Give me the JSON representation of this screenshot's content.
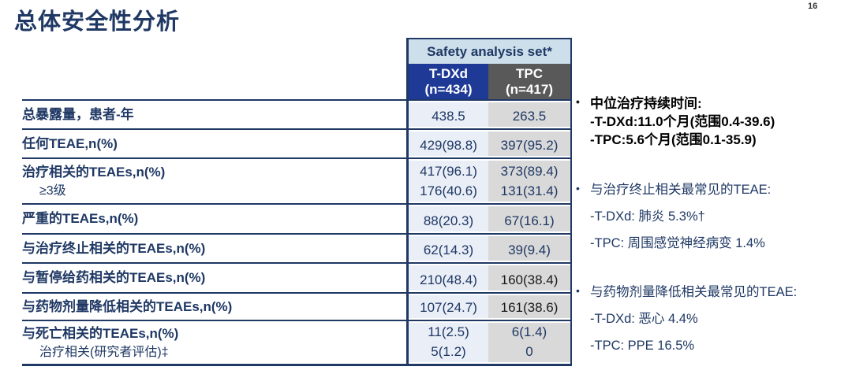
{
  "page": {
    "number": "16"
  },
  "title": "总体安全性分析",
  "table": {
    "group_header": "Safety analysis set*",
    "columns": [
      {
        "name": "T-DXd",
        "n": "(n=434)"
      },
      {
        "name": "TPC",
        "n": "(n=417)"
      }
    ],
    "rows": [
      {
        "label": "总暴露量，患者-年",
        "tdxd": "438.5",
        "tpc": "263.5"
      },
      {
        "label": "任何TEAE,n(%)",
        "tdxd": "429(98.8)",
        "tpc": "397(95.2)"
      },
      {
        "label": "治疗相关的TEAEs,n(%)",
        "sublabel": "≥3级",
        "tdxd": "417(96.1)",
        "tdxd2": "176(40.6)",
        "tpc": "373(89.4)",
        "tpc2": "131(31.4)"
      },
      {
        "label": "严重的TEAEs,n(%)",
        "tdxd": "88(20.3)",
        "tpc": "67(16.1)"
      },
      {
        "label": "与治疗终止相关的TEAEs,n(%)",
        "tdxd": "62(14.3)",
        "tpc": "39(9.4)"
      },
      {
        "label": "与暂停给药相关的TEAEs,n(%)",
        "tdxd": "210(48.4)",
        "tpc": "160(38.4)"
      },
      {
        "label": "与药物剂量降低相关的TEAEs,n(%)",
        "tdxd": "107(24.7)",
        "tpc": "161(38.6)"
      },
      {
        "label": "与死亡相关的TEAEs,n(%)",
        "sublabel": "治疗相关(研究者评估)‡",
        "tdxd": "11(2.5)",
        "tdxd2": "5(1.2)",
        "tpc": "6(1.4)",
        "tpc2": "0"
      }
    ]
  },
  "notes": [
    {
      "title": "中位治疗持续时间:",
      "lines": [
        "-T-DXd:11.0个月(范围0.4-39.6)",
        "-TPC:5.6个月(范围0.1-35.9)"
      ]
    },
    {
      "title": "与治疗终止相关最常见的TEAE:",
      "lines": [
        "-T-DXd: 肺炎 5.3%†",
        "-TPC: 周围感觉神经病变 1.4%"
      ]
    },
    {
      "title": "与药物剂量降低相关最常见的TEAE:",
      "lines": [
        "-T-DXd: 恶心 4.4%",
        "-TPC: PPE 16.5%"
      ]
    }
  ],
  "colors": {
    "navy_text": "#1F3864",
    "tdxd_header_bg": "#1E3A96",
    "tpc_header_bg": "#595959",
    "group_header_bg": "#CDDFEB",
    "tdxd_col_bg": "#E9EEF7",
    "tpc_col_bg": "#D9D9D9"
  }
}
